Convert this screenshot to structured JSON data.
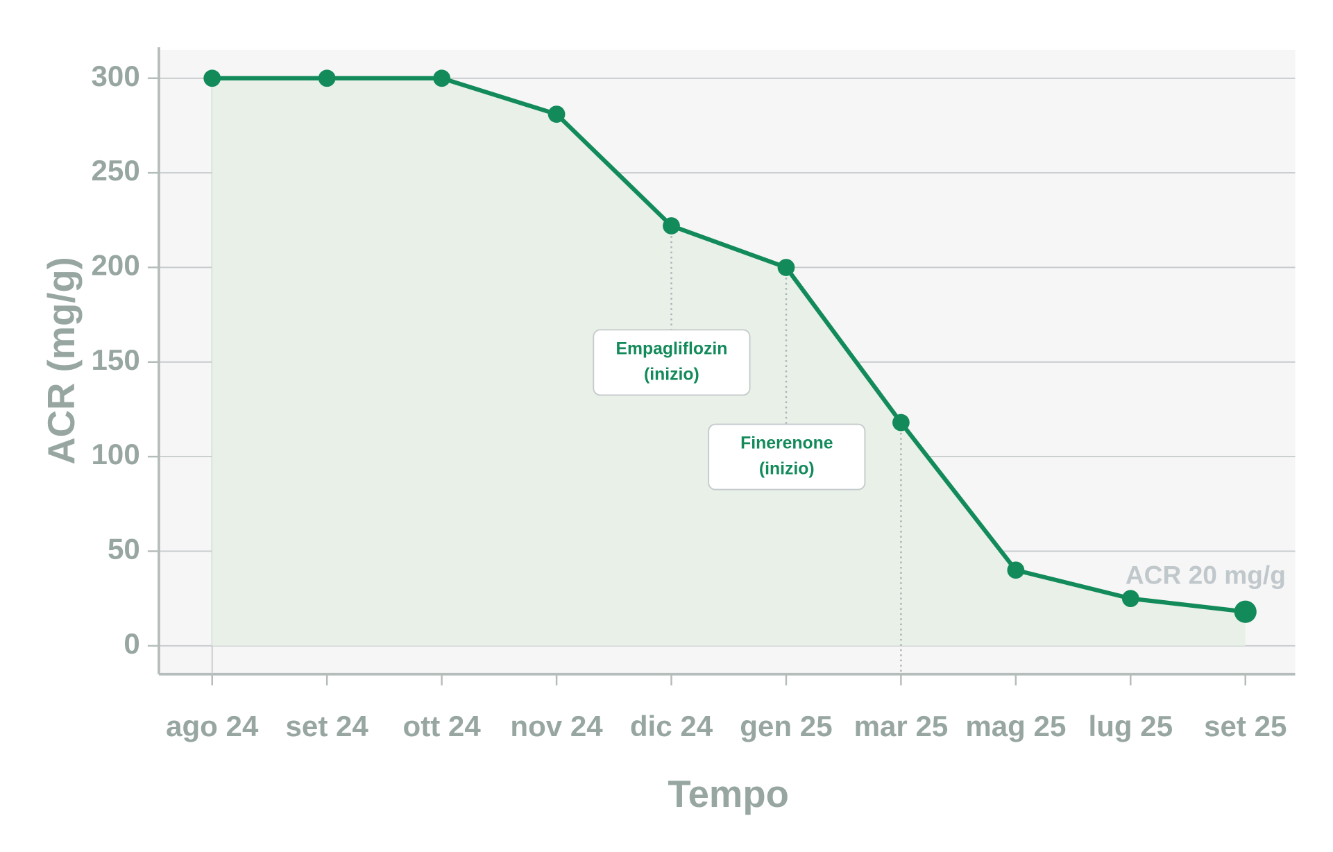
{
  "chart_data": {
    "type": "line",
    "xlabel": "Tempo",
    "ylabel": "ACR (mg/g)",
    "categories": [
      "ago 24",
      "set 24",
      "ott 24",
      "nov 24",
      "dic 24",
      "gen 25",
      "mar 25",
      "mag 25",
      "lug 25",
      "set 25"
    ],
    "series": [
      {
        "name": "ACR",
        "color": "#128a5a",
        "values": [
          300,
          300,
          300,
          281,
          222,
          200,
          118,
          40,
          25,
          18
        ]
      }
    ],
    "ylim": [
      -15,
      315
    ],
    "yticks": [
      0,
      50,
      100,
      150,
      200,
      250,
      300
    ],
    "grid": true,
    "annotations": [
      {
        "lines": [
          "Empagliflozin",
          "(inizio)"
        ]
      },
      {
        "lines": [
          "Finerenone",
          "(inizio)"
        ]
      },
      {
        "text": "ACR 20 mg/g"
      }
    ]
  }
}
